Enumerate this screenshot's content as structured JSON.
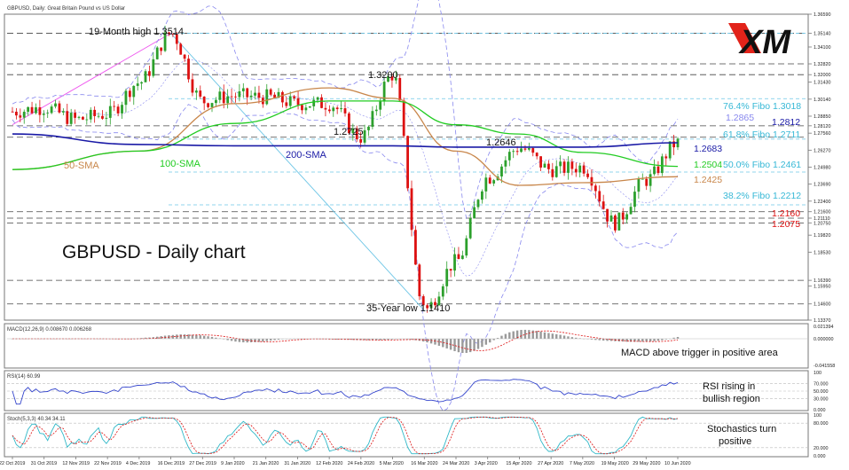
{
  "header": {
    "symbol_line": "GBPUSD, Daily: Great Britain Pound vs US Dollar",
    "logo_text": "XM"
  },
  "main": {
    "title": "GBPUSD - Daily chart",
    "annotations": {
      "high": "19-Month high 1.3514",
      "low": "35-Year low 1.1410",
      "p13200": "1.3200",
      "p12725": "1.2725",
      "p12646": "1.2646",
      "sma50": "50-SMA",
      "sma100": "100-SMA",
      "sma200": "200-SMA",
      "fibo764": "76.4% Fibo 1.3018",
      "fibo618": "61.8% Fibo 1.2711",
      "fibo500": "50.0% Fibo 1.2461",
      "fibo382": "38.2% Fibo 1.2212",
      "p12865": "1.2865",
      "p12812": "1.2812",
      "p12683": "1.2683",
      "p12504": "1.2504",
      "p12425": "1.2425",
      "p12160": "1.2160",
      "p12075": "1.2075"
    },
    "price_axis": [
      "1.36590",
      "1.35140",
      "1.34100",
      "1.32820",
      "1.32000",
      "1.31430",
      "1.30140",
      "1.28850",
      "1.28120",
      "1.27560",
      "1.26270",
      "1.24980",
      "1.23690",
      "1.22400",
      "1.21600",
      "1.21110",
      "1.20750",
      "1.19820",
      "1.18530",
      "1.16390",
      "1.15950",
      "1.14600",
      "1.13370"
    ]
  },
  "macd": {
    "header": "MACD(12,26,9) 0.008670 0.006268",
    "note": "MACD above trigger in positive area",
    "axis": [
      "0.021394",
      "0.000000",
      "-0.041558"
    ]
  },
  "rsi": {
    "header": "RSI(14) 60.99",
    "note_line1": "RSI rising in",
    "note_line2": "bullish region",
    "axis": [
      "100",
      "70.000",
      "50.000",
      "30.000",
      "0.000"
    ]
  },
  "stoch": {
    "header": "Stoch(5,3,3) 40.34 34.11",
    "note_line1": "Stochastics turn",
    "note_line2": "positive",
    "axis": [
      "100",
      "80.000",
      "20.000",
      "0.000"
    ]
  },
  "time_axis": [
    "22 Oct 2019",
    "31 Oct 2019",
    "12 Nov 2019",
    "22 Nov 2019",
    "4 Dec 2019",
    "16 Dec 2019",
    "27 Dec 2019",
    "9 Jan 2020",
    "21 Jan 2020",
    "31 Jan 2020",
    "12 Feb 2020",
    "24 Feb 2020",
    "5 Mar 2020",
    "16 Mar 2020",
    "24 Mar 2020",
    "3 Apr 2020",
    "15 Apr 2020",
    "27 Apr 2020",
    "7 May 2020",
    "19 May 2020",
    "29 May 2020",
    "10 Jun 2020"
  ],
  "chart_data": {
    "type": "line",
    "title": "GBPUSD - Daily chart",
    "series": [
      {
        "name": "50-SMA",
        "x": [
          "22 Oct 2019",
          "4 Dec 2019",
          "9 Jan 2020",
          "12 Feb 2020",
          "5 Mar 2020",
          "24 Mar 2020",
          "15 Apr 2020",
          "7 May 2020",
          "10 Jun 2020"
        ],
        "values": [
          1.248,
          1.262,
          1.298,
          1.31,
          1.302,
          1.262,
          1.236,
          1.238,
          1.2425
        ]
      },
      {
        "name": "100-SMA",
        "x": [
          "22 Oct 2019",
          "4 Dec 2019",
          "9 Jan 2020",
          "12 Feb 2020",
          "5 Mar 2020",
          "24 Mar 2020",
          "15 Apr 2020",
          "7 May 2020",
          "10 Jun 2020"
        ],
        "values": [
          1.248,
          1.262,
          1.283,
          1.3,
          1.3,
          1.282,
          1.275,
          1.261,
          1.2504
        ]
      },
      {
        "name": "200-SMA",
        "x": [
          "22 Oct 2019",
          "4 Dec 2019",
          "9 Jan 2020",
          "12 Feb 2020",
          "5 Mar 2020",
          "24 Mar 2020",
          "15 Apr 2020",
          "7 May 2020",
          "10 Jun 2020"
        ],
        "values": [
          1.275,
          1.267,
          1.266,
          1.266,
          1.266,
          1.265,
          1.265,
          1.265,
          1.2683
        ]
      }
    ],
    "price_x": [
      "22 Oct 2019",
      "31 Oct 2019",
      "12 Nov 2019",
      "22 Nov 2019",
      "4 Dec 2019",
      "16 Dec 2019",
      "27 Dec 2019",
      "9 Jan 2020",
      "21 Jan 2020",
      "31 Jan 2020",
      "12 Feb 2020",
      "24 Feb 2020",
      "5 Mar 2020",
      "16 Mar 2020",
      "24 Mar 2020",
      "3 Apr 2020",
      "15 Apr 2020",
      "27 Apr 2020",
      "7 May 2020",
      "19 May 2020",
      "29 May 2020",
      "10 Jun 2020"
    ],
    "price_close": [
      1.292,
      1.295,
      1.286,
      1.29,
      1.314,
      1.3514,
      1.3,
      1.304,
      1.303,
      1.298,
      1.298,
      1.2725,
      1.32,
      1.141,
      1.178,
      1.242,
      1.2646,
      1.248,
      1.25,
      1.2075,
      1.24,
      1.2683
    ],
    "ylim": [
      1.1337,
      1.3659
    ],
    "horizontal_levels": [
      1.3514,
      1.3282,
      1.32,
      1.2812,
      1.2725,
      1.216,
      1.2111,
      1.2075,
      1.1639,
      1.146
    ],
    "fibonacci": [
      {
        "label": "76.4% Fibo 1.3018",
        "value": 1.3018
      },
      {
        "label": "61.8% Fibo 1.2711",
        "value": 1.2711
      },
      {
        "label": "50.0% Fibo 1.2461",
        "value": 1.2461
      },
      {
        "label": "38.2% Fibo 1.2212",
        "value": 1.2212
      }
    ]
  },
  "colors": {
    "bull": "#2ca02c",
    "bear": "#dd1111",
    "sma50": "#c8864a",
    "sma100": "#22cc22",
    "sma200": "#1a1aa6",
    "fibo": "#36b8d6",
    "bollinger": "#8888ee",
    "trend": "#ee55ee",
    "fibo_line": "#6ec6e6"
  }
}
